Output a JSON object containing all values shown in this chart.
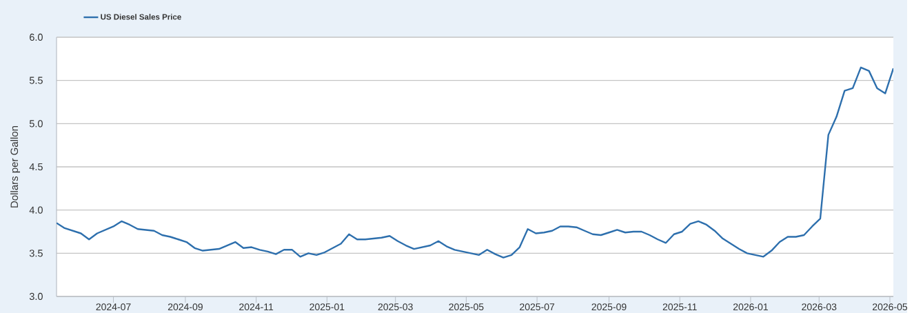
{
  "chart_data": {
    "type": "line",
    "ylabel": "Dollars per Gallon",
    "x": [
      "2024-05-13",
      "2024-05-20",
      "2024-05-27",
      "2024-06-03",
      "2024-06-10",
      "2024-06-17",
      "2024-06-24",
      "2024-07-01",
      "2024-07-08",
      "2024-07-15",
      "2024-07-22",
      "2024-07-29",
      "2024-08-05",
      "2024-08-12",
      "2024-08-19",
      "2024-08-26",
      "2024-09-02",
      "2024-09-09",
      "2024-09-16",
      "2024-09-23",
      "2024-09-30",
      "2024-10-07",
      "2024-10-14",
      "2024-10-21",
      "2024-10-28",
      "2024-11-04",
      "2024-11-11",
      "2024-11-18",
      "2024-11-25",
      "2024-12-02",
      "2024-12-09",
      "2024-12-16",
      "2024-12-23",
      "2024-12-30",
      "2025-01-06",
      "2025-01-13",
      "2025-01-20",
      "2025-01-27",
      "2025-02-03",
      "2025-02-10",
      "2025-02-17",
      "2025-02-24",
      "2025-03-03",
      "2025-03-10",
      "2025-03-17",
      "2025-03-24",
      "2025-03-31",
      "2025-04-07",
      "2025-04-14",
      "2025-04-21",
      "2025-04-28",
      "2025-05-05",
      "2025-05-12",
      "2025-05-19",
      "2025-05-26",
      "2025-06-02",
      "2025-06-09",
      "2025-06-16",
      "2025-06-23",
      "2025-06-30",
      "2025-07-07",
      "2025-07-14",
      "2025-07-21",
      "2025-07-28",
      "2025-08-04",
      "2025-08-11",
      "2025-08-18",
      "2025-08-25",
      "2025-09-01",
      "2025-09-08",
      "2025-09-15",
      "2025-09-22",
      "2025-09-29",
      "2025-10-06",
      "2025-10-13",
      "2025-10-20",
      "2025-10-27",
      "2025-11-03",
      "2025-11-10",
      "2025-11-17",
      "2025-11-24",
      "2025-12-01",
      "2025-12-08",
      "2025-12-15",
      "2025-12-22",
      "2025-12-29",
      "2026-01-05",
      "2026-01-12",
      "2026-01-19",
      "2026-01-26",
      "2026-02-02",
      "2026-02-09",
      "2026-02-16",
      "2026-02-23",
      "2026-03-02",
      "2026-03-09",
      "2026-03-16",
      "2026-03-23",
      "2026-03-30",
      "2026-04-06",
      "2026-04-13",
      "2026-04-20",
      "2026-04-27",
      "2026-05-04"
    ],
    "series": [
      {
        "name": "US Diesel Sales Price",
        "color": "#2d6fad",
        "values": [
          3.85,
          3.79,
          3.76,
          3.73,
          3.66,
          3.73,
          3.77,
          3.81,
          3.87,
          3.83,
          3.78,
          3.77,
          3.76,
          3.71,
          3.69,
          3.66,
          3.63,
          3.56,
          3.53,
          3.54,
          3.55,
          3.59,
          3.63,
          3.56,
          3.57,
          3.54,
          3.52,
          3.49,
          3.54,
          3.54,
          3.46,
          3.5,
          3.48,
          3.51,
          3.56,
          3.61,
          3.72,
          3.66,
          3.66,
          3.67,
          3.68,
          3.7,
          3.64,
          3.59,
          3.55,
          3.57,
          3.59,
          3.64,
          3.58,
          3.54,
          3.52,
          3.5,
          3.48,
          3.54,
          3.49,
          3.45,
          3.48,
          3.57,
          3.78,
          3.73,
          3.74,
          3.76,
          3.81,
          3.81,
          3.8,
          3.76,
          3.72,
          3.71,
          3.74,
          3.77,
          3.74,
          3.75,
          3.75,
          3.71,
          3.66,
          3.62,
          3.72,
          3.75,
          3.84,
          3.87,
          3.83,
          3.76,
          3.67,
          3.61,
          3.55,
          3.5,
          3.48,
          3.46,
          3.53,
          3.63,
          3.69,
          3.69,
          3.71,
          3.81,
          3.9,
          4.87,
          5.08,
          5.38,
          5.41,
          5.65,
          5.61,
          5.41,
          5.35,
          5.64
        ]
      }
    ],
    "xlim": [
      "2024-05-13",
      "2026-05-04"
    ],
    "xticks": [
      {
        "value": "2024-07-01",
        "label": "2024-07"
      },
      {
        "value": "2024-09-01",
        "label": "2024-09"
      },
      {
        "value": "2024-11-01",
        "label": "2024-11"
      },
      {
        "value": "2025-01-01",
        "label": "2025-01"
      },
      {
        "value": "2025-03-01",
        "label": "2025-03"
      },
      {
        "value": "2025-05-01",
        "label": "2025-05"
      },
      {
        "value": "2025-07-01",
        "label": "2025-07"
      },
      {
        "value": "2025-09-01",
        "label": "2025-09"
      },
      {
        "value": "2025-11-01",
        "label": "2025-11"
      },
      {
        "value": "2026-01-01",
        "label": "2026-01"
      },
      {
        "value": "2026-03-01",
        "label": "2026-03"
      },
      {
        "value": "2026-05-01",
        "label": "2026-05"
      }
    ],
    "ylim": [
      3,
      6
    ],
    "yticks": [
      {
        "value": 3,
        "label": "3.0"
      },
      {
        "value": 3.5,
        "label": "3.5"
      },
      {
        "value": 4,
        "label": "4.0"
      },
      {
        "value": 4.5,
        "label": "4.5"
      },
      {
        "value": 5,
        "label": "5.0"
      },
      {
        "value": 5.5,
        "label": "5.5"
      },
      {
        "value": 6,
        "label": "6.0"
      }
    ],
    "grid": "y",
    "legend": "top left",
    "line_style": "solid"
  }
}
